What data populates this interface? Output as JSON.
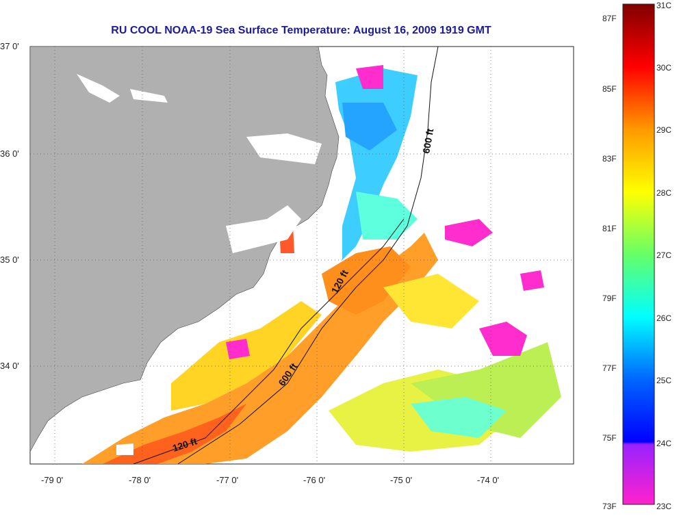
{
  "title": "RU COOL  NOAA-19  Sea Surface Temperature:  August 16, 2009 1919 GMT",
  "lat_labels": [
    "37 0'",
    "36 0'",
    "35 0'",
    "34 0'"
  ],
  "lon_labels": [
    "-79 0'",
    "-78 0'",
    "-77 0'",
    "-76 0'",
    "-75 0'",
    "-74 0'"
  ],
  "contour_labels": [
    "600 ft",
    "120 ft",
    "600 ft",
    "120 ft"
  ],
  "colorbar": {
    "fahrenheit": [
      "87F",
      "85F",
      "83F",
      "81F",
      "79F",
      "77F",
      "75F",
      "73F"
    ],
    "celsius": [
      "31C",
      "30C",
      "29C",
      "28C",
      "27C",
      "26C",
      "25C",
      "24C",
      "23C"
    ]
  },
  "colors": {
    "land": "#b0b0b0",
    "title": "#1a1a9e",
    "scale": [
      "#ff22cc",
      "#0000ff",
      "#00ffff",
      "#ffff00",
      "#ff9900",
      "#ff0000",
      "#800000"
    ]
  }
}
